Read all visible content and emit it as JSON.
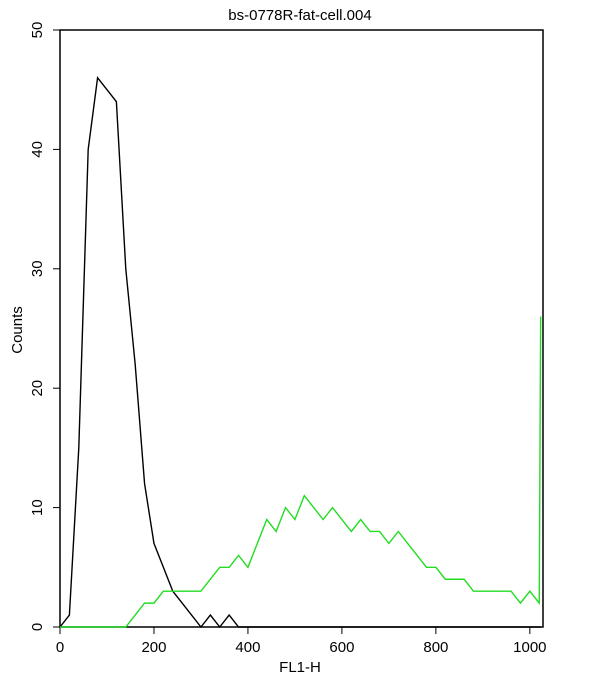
{
  "chart_data": {
    "type": "line",
    "title": "bs-0778R-fat-cell.004",
    "x_label": "FL1-H",
    "y_label": "Counts",
    "x": [
      0,
      20,
      40,
      60,
      80,
      100,
      120,
      140,
      160,
      180,
      200,
      220,
      240,
      260,
      280,
      300,
      320,
      340,
      360,
      380,
      400,
      420,
      440,
      460,
      480,
      500,
      520,
      540,
      560,
      580,
      600,
      620,
      640,
      660,
      680,
      700,
      720,
      740,
      760,
      780,
      800,
      820,
      840,
      860,
      880,
      900,
      920,
      940,
      960,
      980,
      1000,
      1020,
      1023
    ],
    "series": [
      {
        "color": "#000000",
        "values": [
          0,
          1,
          15,
          40,
          46,
          45,
          44,
          30,
          22,
          12,
          7,
          5,
          3,
          2,
          1,
          0,
          1,
          0,
          1,
          0,
          0,
          0,
          0,
          0,
          0,
          0,
          0,
          0,
          0,
          0,
          0,
          0,
          0,
          0,
          0,
          0,
          0,
          0,
          0,
          0,
          0,
          0,
          0,
          0,
          0,
          0,
          0,
          0,
          0,
          0,
          0,
          0,
          0
        ]
      },
      {
        "color": "#22dd22",
        "values": [
          0,
          0,
          0,
          0,
          0,
          0,
          0,
          0,
          1,
          2,
          2,
          3,
          3,
          3,
          3,
          3,
          4,
          5,
          5,
          6,
          5,
          7,
          9,
          8,
          10,
          9,
          11,
          10,
          9,
          10,
          9,
          8,
          9,
          8,
          8,
          7,
          8,
          7,
          6,
          5,
          5,
          4,
          4,
          4,
          3,
          3,
          3,
          3,
          3,
          2,
          3,
          2,
          26
        ]
      }
    ],
    "xlim": [
      0,
      1028
    ],
    "ylim": [
      0,
      50
    ],
    "xticks": [
      0,
      200,
      400,
      600,
      800,
      1000
    ],
    "yticks": [
      0,
      10,
      20,
      30,
      40,
      50
    ]
  }
}
